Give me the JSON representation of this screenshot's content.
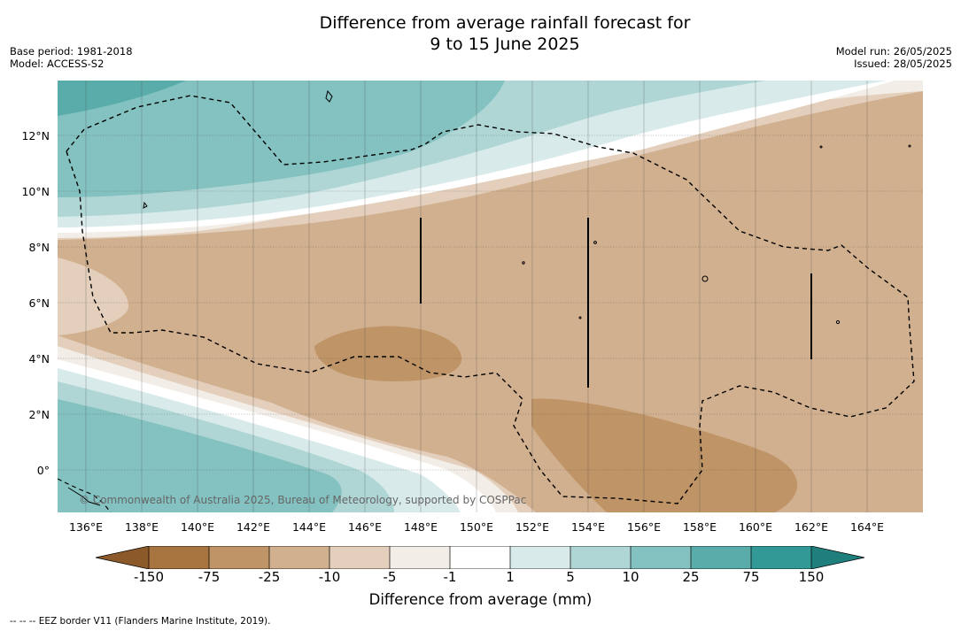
{
  "header": {
    "title_line1": "Difference from average rainfall forecast for",
    "title_line2": "9 to 15 June 2025",
    "base_period": "Base period: 1981-2018",
    "model": "Model: ACCESS-S2",
    "model_run": "Model run: 26/05/2025",
    "issued": "Issued: 28/05/2025"
  },
  "map": {
    "lat_labels": [
      "12°N",
      "10°N",
      "8°N",
      "6°N",
      "4°N",
      "2°N",
      "0°"
    ],
    "lon_labels": [
      "136°E",
      "138°E",
      "140°E",
      "142°E",
      "144°E",
      "146°E",
      "148°E",
      "150°E",
      "152°E",
      "154°E",
      "156°E",
      "158°E",
      "160°E",
      "162°E",
      "164°E"
    ],
    "copyright": "© Commonwealth of Australia 2025, Bureau of Meteorology, supported by COSPPac"
  },
  "legend": {
    "ticks": [
      "-150",
      "-75",
      "-25",
      "-10",
      "-5",
      "-1",
      "1",
      "5",
      "10",
      "25",
      "75",
      "150"
    ],
    "colors": {
      "lt_minus150": "#8c5a2a",
      "b1": "#a87440",
      "b2": "#bf9466",
      "b3": "#d1b08f",
      "b4": "#e3cfbb",
      "b5": "#f2ede6",
      "b6": "#ffffff",
      "b7": "#d8ebea",
      "b8": "#afd6d5",
      "b9": "#83c2c0",
      "b10": "#5aacab",
      "b11": "#339996",
      "gt_150": "#1f7f7c"
    },
    "label": "Difference from average (mm)"
  },
  "footnote": "--  --  -- EEZ border V11 (Flanders Marine Institute, 2019)."
}
